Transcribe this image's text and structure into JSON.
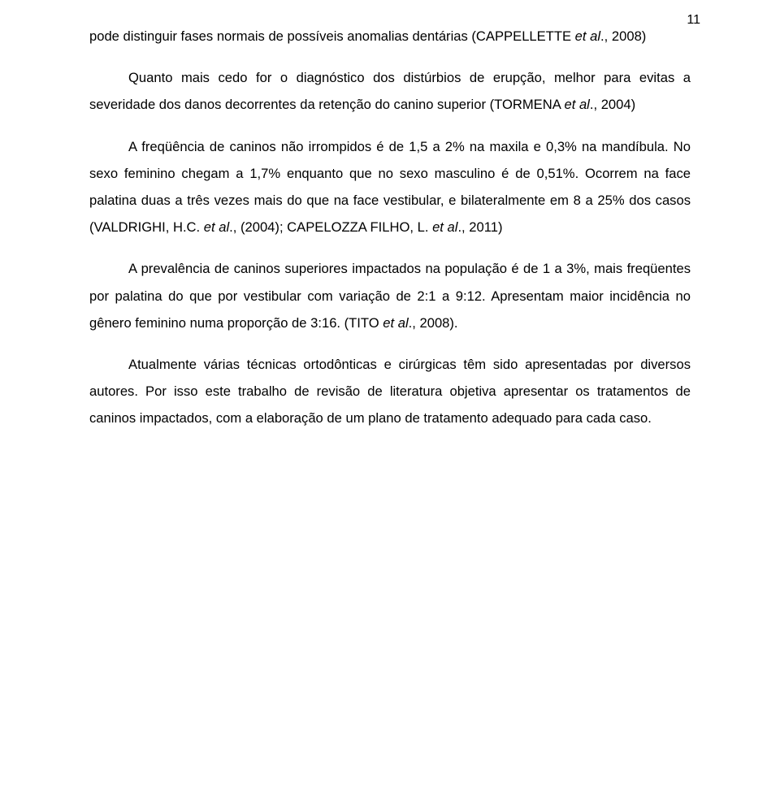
{
  "page_number": "11",
  "paragraphs": {
    "p1_a": "pode distinguir fases normais de possíveis anomalias dentárias (CAPPELLETTE ",
    "p1_it": "et al",
    "p1_b": "., 2008)",
    "p2_a": "Quanto mais cedo for o diagnóstico dos distúrbios de erupção, melhor para evitas a severidade dos danos decorrentes da retenção do canino superior (TORMENA ",
    "p2_it": "et al",
    "p2_b": "., 2004)",
    "p3_a": "A freqüência de caninos não irrompidos é de 1,5 a 2% na maxila e 0,3% na mandíbula. No sexo feminino chegam a 1,7% enquanto que no sexo masculino é de 0,51%. Ocorrem na face palatina duas a três vezes mais do que na face vestibular, e bilateralmente em 8 a 25% dos casos (VALDRIGHI, H.C. ",
    "p3_it1": "et al",
    "p3_b": "., (2004); CAPELOZZA FILHO, L. ",
    "p3_it2": "et al",
    "p3_c": "., 2011)",
    "p4_a": "A prevalência de caninos superiores impactados na população é de 1 a 3%, mais freqüentes por palatina do que por vestibular com variação de 2:1 a 9:12. Apresentam maior incidência no gênero feminino numa proporção de 3:16. (TITO ",
    "p4_it": "et al",
    "p4_b": "., 2008).",
    "p5": "Atualmente várias técnicas ortodônticas e cirúrgicas têm sido apresentadas por diversos autores. Por isso este trabalho de revisão de literatura objetiva apresentar os tratamentos de caninos impactados, com a elaboração de um plano de tratamento adequado para cada caso."
  }
}
